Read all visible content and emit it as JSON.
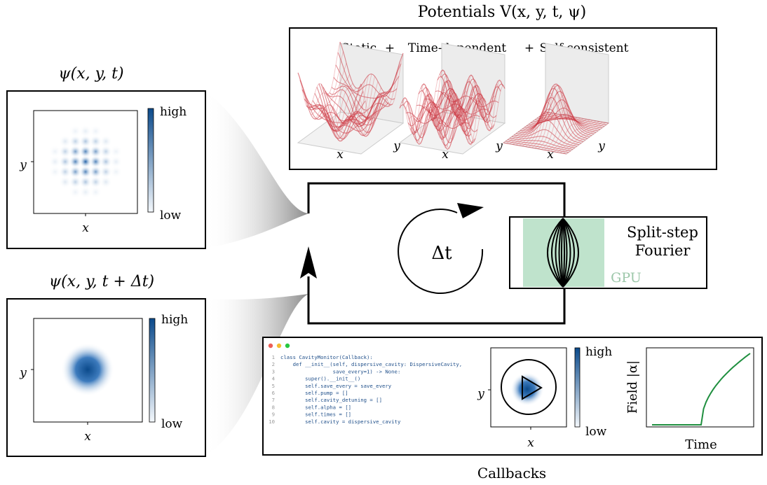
{
  "panels": [
    {
      "title": "ψ(x, y, t)",
      "x_label": "x",
      "y_label": "y",
      "colorbar": {
        "high": "high",
        "low": "low"
      }
    },
    {
      "title": "ψ(x, y, t + Δt)",
      "x_label": "x",
      "y_label": "y",
      "colorbar": {
        "high": "high",
        "low": "low"
      }
    }
  ],
  "potentials": {
    "title": "Potentials V(x, y, t, ψ)",
    "terms": [
      "Static",
      "Time-dependent",
      "Self-consistent"
    ],
    "operators": [
      "+",
      "+"
    ],
    "axes": [
      {
        "x": "x",
        "y": "y"
      },
      {
        "x": "x",
        "y": "y"
      },
      {
        "x": "x",
        "y": "y"
      }
    ]
  },
  "loop": {
    "step": "Δt"
  },
  "solver": {
    "label_lines": [
      "Split-step",
      "Fourier"
    ],
    "hardware": "GPU"
  },
  "callbacks": {
    "title": "Callbacks",
    "code": [
      {
        "n": 1,
        "text": "class CavityMonitor(Callback):"
      },
      {
        "n": 2,
        "text": "    def __init__(self, dispersive_cavity: DispersiveCavity,"
      },
      {
        "n": 3,
        "text": "                 save_every=1) -> None:"
      },
      {
        "n": 4,
        "text": "        super().__init__()"
      },
      {
        "n": 5,
        "text": "        self.save_every = save_every"
      },
      {
        "n": 6,
        "text": "        self.pump = []"
      },
      {
        "n": 7,
        "text": "        self.cavity_detuning = []"
      },
      {
        "n": 8,
        "text": "        self.alpha = []"
      },
      {
        "n": 9,
        "text": "        self.times = []"
      },
      {
        "n": 10,
        "text": "        self.cavity = dispersive_cavity"
      }
    ],
    "map": {
      "x_label": "x",
      "y_label": "y",
      "colorbar": {
        "high": "high",
        "low": "low"
      }
    },
    "plot": {
      "y_label": "Field |α|",
      "x_label": "Time"
    }
  }
}
